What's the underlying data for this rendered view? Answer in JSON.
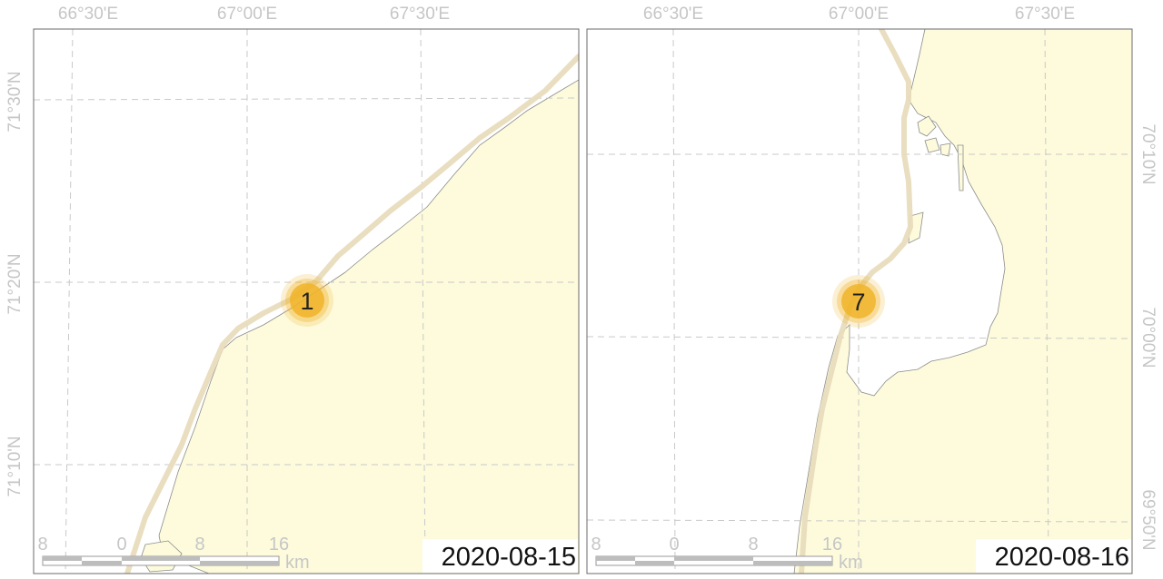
{
  "panels": [
    {
      "lon_labels": [
        "66°30'E",
        "67°00'E",
        "67°30'E"
      ],
      "lat_labels": [
        "71°30'N",
        "71°20'N",
        "71°10'N"
      ],
      "cluster_count": "1",
      "date": "2020-08-15",
      "scalebar": {
        "labels": [
          "8",
          "0",
          "8",
          "16"
        ],
        "unit": "km"
      }
    },
    {
      "lon_labels": [
        "66°30'E",
        "67°00'E",
        "67°30'E"
      ],
      "lat_labels": [
        "70°10'N",
        "70°00'N",
        "69°50'N"
      ],
      "cluster_count": "7",
      "date": "2020-08-16",
      "scalebar": {
        "labels": [
          "8",
          "0",
          "8",
          "16"
        ],
        "unit": "km"
      }
    }
  ],
  "colors": {
    "land": "#fdfbdc",
    "track": "#e8dcbc",
    "cluster": "#f0b429"
  }
}
